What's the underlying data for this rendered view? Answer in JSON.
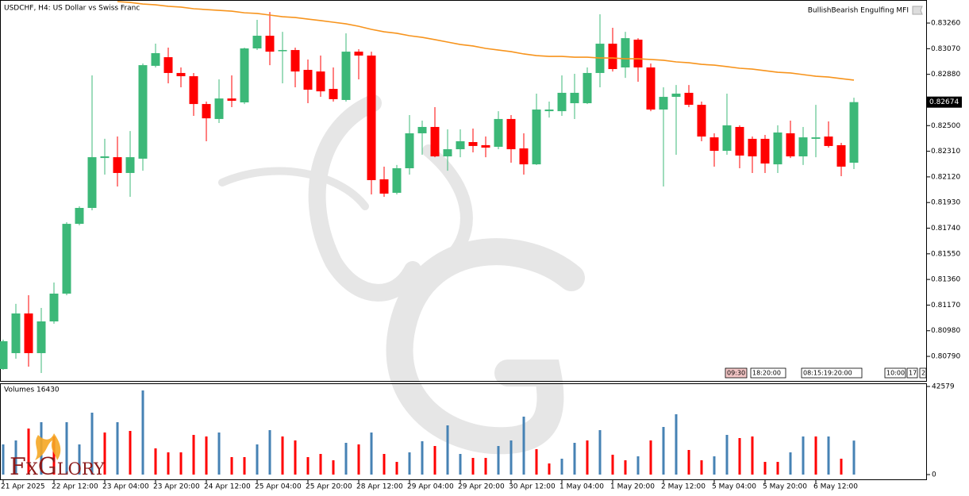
{
  "chart_data": {
    "type": "candlestick",
    "title": "USDCHF, H4:  US Dollar vs Swiss Franc",
    "indicator": "BullishBearish Engulfing MFI",
    "categories": [
      "21 Apr 2025",
      null,
      null,
      null,
      "22 Apr 12:00",
      null,
      null,
      null,
      "23 Apr 04:00",
      null,
      null,
      null,
      "23 Apr 20:00",
      null,
      null,
      null,
      "24 Apr 12:00",
      null,
      null,
      null,
      "25 Apr 04:00",
      null,
      null,
      null,
      "25 Apr 20:00",
      null,
      null,
      null,
      "28 Apr 12:00",
      null,
      null,
      null,
      "29 Apr 04:00",
      null,
      null,
      null,
      "29 Apr 20:00",
      null,
      null,
      null,
      "30 Apr 12:00",
      null,
      null,
      null,
      "1 May 04:00",
      null,
      null,
      null,
      "1 May 20:00",
      null,
      null,
      null,
      "2 May 12:00",
      null,
      null,
      null,
      "5 May 04:00",
      null,
      null,
      null,
      "5 May 20:00",
      null,
      null,
      null,
      "6 May 12:00",
      null,
      null,
      null
    ],
    "open": [
      0.80696,
      0.80814,
      0.81108,
      0.80814,
      0.81049,
      0.81255,
      0.81772,
      0.8189,
      0.8226,
      0.82266,
      0.82149,
      0.82255,
      0.82943,
      0.83007,
      0.8289,
      0.82866,
      0.8266,
      0.82549,
      0.82701,
      0.82672,
      0.83072,
      0.83166,
      0.83054,
      0.8306,
      0.82913,
      0.82901,
      0.82772,
      0.8269,
      0.83048,
      0.83019,
      0.82102,
      0.82002,
      0.82184,
      0.82443,
      0.8249,
      0.82272,
      0.82325,
      0.82378,
      0.82355,
      0.82343,
      0.82549,
      0.82331,
      0.82213,
      0.82607,
      0.82607,
      0.82666,
      0.82666,
      0.8289,
      0.83107,
      0.82931,
      0.83137,
      0.82931,
      0.82619,
      0.82713,
      0.82743,
      0.82654,
      0.82413,
      0.82313,
      0.8249,
      0.82402,
      0.82402,
      0.82213,
      0.82443,
      0.82272,
      0.82402,
      0.82419,
      0.82355,
      0.82225
    ],
    "high": [
      0.80914,
      0.81179,
      0.81243,
      0.81149,
      0.81337,
      0.81784,
      0.81902,
      0.82872,
      0.82402,
      0.82419,
      0.8246,
      0.8296,
      0.83107,
      0.83078,
      0.82931,
      0.8289,
      0.82678,
      0.82843,
      0.82872,
      0.83078,
      0.83284,
      0.83342,
      0.83195,
      0.83078,
      0.8299,
      0.83019,
      0.82931,
      0.83184,
      0.83066,
      0.83048,
      0.82196,
      0.82208,
      0.82578,
      0.82537,
      0.82637,
      0.82472,
      0.82472,
      0.82478,
      0.82419,
      0.82607,
      0.82578,
      0.82443,
      0.82737,
      0.82678,
      0.82872,
      0.82884,
      0.82931,
      0.83325,
      0.83225,
      0.83195,
      0.83148,
      0.8296,
      0.82784,
      0.82801,
      0.82801,
      0.82678,
      0.82443,
      0.82737,
      0.82502,
      0.82419,
      0.82431,
      0.82502,
      0.82537,
      0.8249,
      0.82654,
      0.82531,
      0.82372,
      0.82707
    ],
    "low": [
      0.8069,
      0.80773,
      0.80714,
      0.80667,
      0.81032,
      0.81243,
      0.81761,
      0.81872,
      0.82137,
      0.82049,
      0.81972,
      0.82166,
      0.82931,
      0.82813,
      0.82784,
      0.82572,
      0.82384,
      0.82519,
      0.82637,
      0.8266,
      0.8306,
      0.82948,
      0.82813,
      0.82784,
      0.82666,
      0.82713,
      0.82678,
      0.82678,
      0.82843,
      0.8199,
      0.81972,
      0.8199,
      0.82137,
      0.82284,
      0.82266,
      0.82166,
      0.82266,
      0.82302,
      0.82266,
      0.82325,
      0.82225,
      0.82137,
      0.82208,
      0.8256,
      0.82572,
      0.82549,
      0.8266,
      0.82784,
      0.82901,
      0.82854,
      0.82825,
      0.82607,
      0.82049,
      0.82284,
      0.82637,
      0.82384,
      0.82196,
      0.82284,
      0.82184,
      0.82149,
      0.82149,
      0.82149,
      0.8226,
      0.82208,
      0.82266,
      0.82337,
      0.82125,
      0.82178
    ],
    "close": [
      0.80902,
      0.81108,
      0.80814,
      0.81049,
      0.81255,
      0.81772,
      0.8189,
      0.82266,
      0.82272,
      0.82149,
      0.82266,
      0.82948,
      0.83037,
      0.8289,
      0.82866,
      0.8266,
      0.82554,
      0.82701,
      0.82684,
      0.83072,
      0.83166,
      0.83048,
      0.8306,
      0.82901,
      0.82766,
      0.82754,
      0.82696,
      0.83048,
      0.83019,
      0.82096,
      0.81996,
      0.82184,
      0.82443,
      0.8249,
      0.82272,
      0.82325,
      0.82384,
      0.82349,
      0.82337,
      0.82549,
      0.82325,
      0.82213,
      0.82619,
      0.82619,
      0.82743,
      0.82743,
      0.8289,
      0.83107,
      0.82919,
      0.83148,
      0.82931,
      0.82619,
      0.82713,
      0.82737,
      0.82654,
      0.82419,
      0.82313,
      0.82502,
      0.82278,
      0.82272,
      0.82219,
      0.82449,
      0.82272,
      0.82413,
      0.82413,
      0.82349,
      0.82196,
      0.82674
    ],
    "up_color": "#3cb878",
    "down_color": "#ff0000",
    "ylim": [
      0.80608,
      0.83419
    ],
    "yticks": [
      {
        "value": 0.8326,
        "label": "0.83260"
      },
      {
        "value": 0.8307,
        "label": "0.83070"
      },
      {
        "value": 0.8288,
        "label": "0.82880"
      },
      {
        "value": 0.825,
        "label": "0.82500"
      },
      {
        "value": 0.8231,
        "label": "0.82310"
      },
      {
        "value": 0.8212,
        "label": "0.82120"
      },
      {
        "value": 0.8193,
        "label": "0.81930"
      },
      {
        "value": 0.8174,
        "label": "0.81740"
      },
      {
        "value": 0.8155,
        "label": "0.81550"
      },
      {
        "value": 0.8136,
        "label": "0.81360"
      },
      {
        "value": 0.8117,
        "label": "0.81170"
      },
      {
        "value": 0.8098,
        "label": "0.80980"
      },
      {
        "value": 0.8079,
        "label": "0.80790"
      }
    ],
    "current_price": 0.82674,
    "moving_average": {
      "color": "#f7941d",
      "values": [
        null,
        null,
        null,
        null,
        null,
        null,
        null,
        null,
        null,
        0.83419,
        0.83413,
        0.83401,
        0.83395,
        0.83384,
        0.83378,
        0.83366,
        0.8336,
        0.83354,
        0.83348,
        0.83336,
        0.83331,
        0.83319,
        0.83307,
        0.83301,
        0.83289,
        0.83278,
        0.83266,
        0.83254,
        0.83236,
        0.83213,
        0.83195,
        0.83184,
        0.83166,
        0.83154,
        0.83137,
        0.83119,
        0.83101,
        0.8309,
        0.83072,
        0.8306,
        0.83048,
        0.83031,
        0.83019,
        0.83013,
        0.83013,
        0.83007,
        0.83007,
        0.83001,
        0.83001,
        0.82995,
        0.82995,
        0.8299,
        0.82984,
        0.82972,
        0.82966,
        0.82954,
        0.82948,
        0.82937,
        0.82925,
        0.82919,
        0.82907,
        0.82895,
        0.8289,
        0.82878,
        0.82866,
        0.8286,
        0.82848,
        0.82837
      ]
    },
    "volume": {
      "title": "Volumes 16430",
      "values": [
        14580,
        16495,
        22249,
        25318,
        18413,
        25318,
        14577,
        29921,
        20331,
        25318,
        21098,
        40662,
        12659,
        10741,
        10741,
        19180,
        18413,
        20331,
        8439,
        8439,
        14577,
        21482,
        18413,
        16495,
        8439,
        9974,
        6905,
        15344,
        14577,
        20331,
        9974,
        6138,
        10741,
        16111,
        13810,
        23783,
        9974,
        8056,
        8056,
        13810,
        16495,
        28003,
        12275,
        5370,
        7672,
        15344,
        16495,
        21482,
        9590,
        6905,
        8823,
        16495,
        23016,
        29154,
        11892,
        6905,
        8823,
        19180,
        17646,
        18413,
        6138,
        6138,
        10741,
        18413,
        18413,
        18413,
        7672,
        16430
      ],
      "colors": [
        "#4682b4",
        "#4682b4",
        "#ff0000",
        "#4682b4",
        "#ff0000",
        "#4682b4",
        "#4682b4",
        "#4682b4",
        "#ff0000",
        "#4682b4",
        "#ff0000",
        "#4682b4",
        "#ff0000",
        "#ff0000",
        "#ff0000",
        "#ff0000",
        "#ff0000",
        "#4682b4",
        "#ff0000",
        "#ff0000",
        "#4682b4",
        "#4682b4",
        "#ff0000",
        "#ff0000",
        "#ff0000",
        "#ff0000",
        "#ff0000",
        "#4682b4",
        "#ff0000",
        "#4682b4",
        "#ff0000",
        "#ff0000",
        "#4682b4",
        "#4682b4",
        "#ff0000",
        "#4682b4",
        "#4682b4",
        "#ff0000",
        "#ff0000",
        "#4682b4",
        "#4682b4",
        "#4682b4",
        "#ff0000",
        "#ff0000",
        "#4682b4",
        "#4682b4",
        "#ff0000",
        "#4682b4",
        "#ff0000",
        "#ff0000",
        "#4682b4",
        "#ff0000",
        "#4682b4",
        "#4682b4",
        "#ff0000",
        "#ff0000",
        "#4682b4",
        "#4682b4",
        "#ff0000",
        "#ff0000",
        "#ff0000",
        "#ff0000",
        "#4682b4",
        "#4682b4",
        "#ff0000",
        "#4682b4",
        "#ff0000",
        "#4682b4"
      ],
      "ylim": [
        0,
        42579
      ],
      "yticks": [
        0,
        42579
      ]
    },
    "time_markers": [
      "09:30",
      "18:20:00",
      "08:15:19:20:00",
      "10:00",
      "17",
      "2"
    ],
    "logo": "FxGlory"
  }
}
